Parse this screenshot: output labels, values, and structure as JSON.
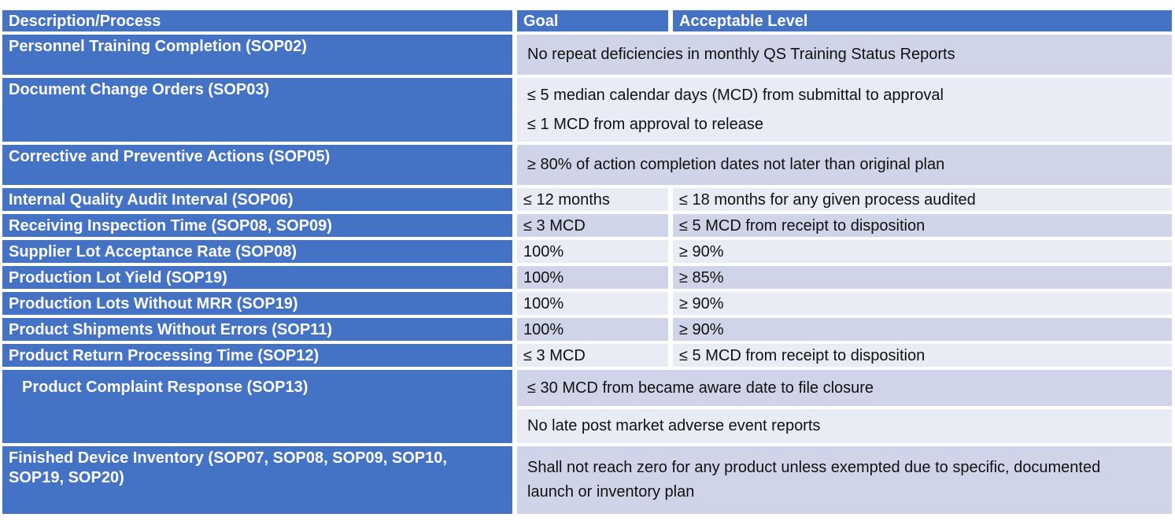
{
  "table": {
    "colors": {
      "header_bg": "#4472C4",
      "label_bg": "#4472C4",
      "band_dark": "#CFD4E8",
      "band_light": "#E9EBF5",
      "header_text": "#FFFFFF",
      "body_text": "#111111",
      "grid_gap": "#FFFFFF"
    },
    "header": {
      "description": "Description/Process",
      "goal": "Goal",
      "acceptable": "Acceptable Level"
    },
    "rows": [
      {
        "label": "Personnel Training Completion (SOP02)",
        "merged": "No repeat deficiencies in monthly QS Training Status Reports"
      },
      {
        "label": "Document Change Orders (SOP03)",
        "merged_line1": "≤ 5 median calendar days (MCD) from submittal to approval",
        "merged_line2": "≤ 1 MCD from approval to release"
      },
      {
        "label": "Corrective and Preventive Actions (SOP05)",
        "merged": "≥ 80% of action completion dates not later than original plan"
      },
      {
        "label": "Internal Quality Audit Interval (SOP06)",
        "goal": "≤ 12 months",
        "acceptable": "≤ 18 months for any given process audited"
      },
      {
        "label": "Receiving Inspection Time (SOP08, SOP09)",
        "goal": "≤ 3 MCD",
        "acceptable": "≤ 5 MCD from receipt to disposition"
      },
      {
        "label": "Supplier Lot Acceptance Rate (SOP08)",
        "goal": "100%",
        "acceptable": "≥ 90%"
      },
      {
        "label": "Production Lot Yield (SOP19)",
        "goal": "100%",
        "acceptable": "≥ 85%"
      },
      {
        "label": "Production Lots Without MRR (SOP19)",
        "goal": "100%",
        "acceptable": "≥ 90%"
      },
      {
        "label": "Product Shipments Without Errors (SOP11)",
        "goal": "100%",
        "acceptable": "≥ 90%"
      },
      {
        "label": "Product Return Processing Time (SOP12)",
        "goal": "≤ 3 MCD",
        "acceptable": "≤ 5 MCD from receipt to disposition"
      },
      {
        "label": "Product Complaint Response (SOP13)",
        "merged_sub1": "≤ 30 MCD from became aware date to file closure",
        "merged_sub2": "No late post market adverse event reports"
      },
      {
        "label": "Finished Device Inventory (SOP07, SOP08, SOP09, SOP10, SOP19, SOP20)",
        "merged": "Shall not reach zero for any product unless exempted due to specific, documented launch or inventory plan"
      }
    ]
  }
}
